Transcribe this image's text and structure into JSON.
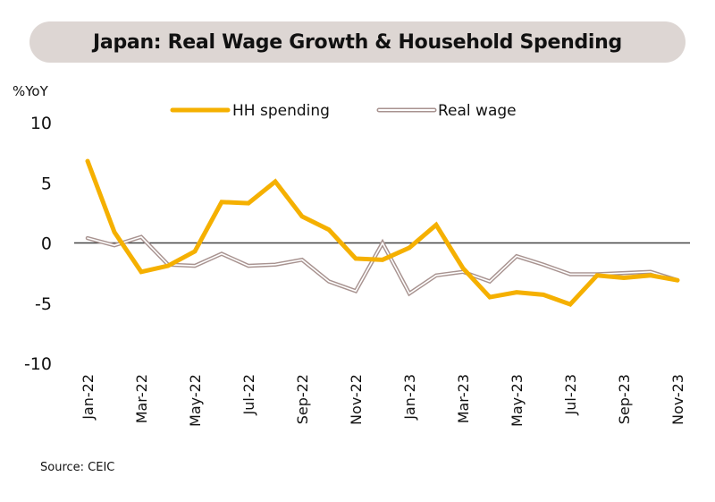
{
  "chart_data": {
    "type": "line",
    "title": "Japan: Real Wage Growth & Household Spending",
    "ylabel": "%YoY",
    "xlabel": "",
    "ylim": [
      -10,
      10
    ],
    "yticks": [
      10,
      5,
      0,
      -5,
      -10
    ],
    "x": [
      "Jan-22",
      "Feb-22",
      "Mar-22",
      "Apr-22",
      "May-22",
      "Jun-22",
      "Jul-22",
      "Aug-22",
      "Sep-22",
      "Oct-22",
      "Nov-22",
      "Dec-22",
      "Jan-23",
      "Feb-23",
      "Mar-23",
      "Apr-23",
      "May-23",
      "Jun-23",
      "Jul-23",
      "Aug-23",
      "Sep-23",
      "Oct-23",
      "Nov-23"
    ],
    "xtick_labels": [
      "Jan-22",
      "Mar-22",
      "May-22",
      "Jul-22",
      "Sep-22",
      "Nov-22",
      "Jan-23",
      "Mar-23",
      "May-23",
      "Jul-23",
      "Sep-23",
      "Nov-23"
    ],
    "series": [
      {
        "name": "HH spending",
        "color": "#f5b000",
        "style": "thick",
        "values": [
          6.8,
          0.9,
          -2.4,
          -1.9,
          -0.7,
          3.4,
          3.3,
          5.1,
          2.2,
          1.1,
          -1.3,
          -1.4,
          -0.4,
          1.5,
          -2.1,
          -4.5,
          -4.1,
          -4.3,
          -5.1,
          -2.7,
          -2.9,
          -2.7,
          -3.1
        ]
      },
      {
        "name": "Real wage",
        "color": "#a89390",
        "style": "double",
        "values": [
          0.4,
          -0.2,
          0.5,
          -1.8,
          -1.9,
          -0.9,
          -1.9,
          -1.8,
          -1.4,
          -3.2,
          -4.0,
          0.0,
          -4.2,
          -2.7,
          -2.4,
          -3.2,
          -1.1,
          -1.8,
          -2.6,
          -2.6,
          -2.5,
          -2.4,
          -3.1
        ]
      }
    ],
    "legend": [
      "HH spending",
      "Real wage"
    ],
    "legend_position": "top-center",
    "grid": false,
    "zero_line": true
  },
  "footer": {
    "source": "Source: CEIC"
  },
  "colors": {
    "title_bg": "#ddd6d3",
    "zero_line": "#444444"
  }
}
